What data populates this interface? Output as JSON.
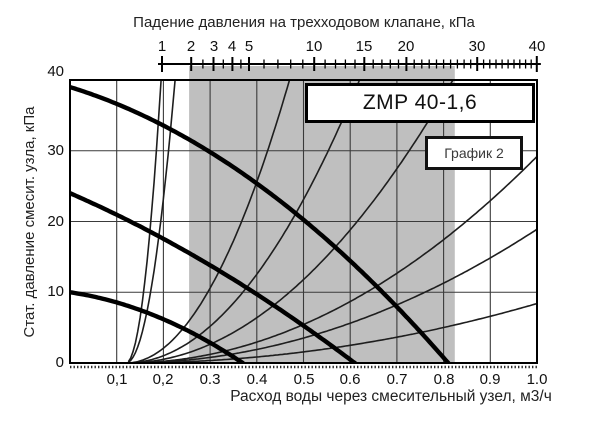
{
  "page": {
    "background": "#ffffff"
  },
  "chart_data": {
    "type": "line",
    "model_label": "ZMP 40-1,6",
    "caption_label": "График 2",
    "top_axis": {
      "label": "Падение давления на трехходовом клапане, кПа",
      "scale": "sqrt",
      "range": [
        1,
        40
      ],
      "major_ticks": [
        1,
        2,
        3,
        4,
        5,
        10,
        15,
        20,
        30,
        40
      ],
      "major_tick_labels": [
        "1",
        "2",
        "3",
        "4",
        "5",
        "10",
        "15",
        "20",
        "30",
        "40"
      ],
      "minor_ticks": [
        2.5,
        3.5,
        4.5,
        6,
        7,
        8,
        9,
        11,
        12,
        13,
        14,
        16,
        17,
        18,
        19,
        21,
        22,
        23,
        24,
        25,
        26,
        27,
        28,
        29,
        31,
        32,
        33,
        34,
        35,
        36,
        37,
        38,
        39
      ]
    },
    "bottom_axis": {
      "label": "Расход воды через смесительный узел, м3/ч",
      "range": [
        0,
        1.0
      ],
      "ticks": [
        0.1,
        0.2,
        0.3,
        0.4,
        0.5,
        0.6,
        0.7,
        0.8,
        0.9,
        1.0
      ],
      "tick_labels": [
        "0,1",
        "0,2",
        "0.3",
        "0.4",
        "0.5",
        "0.6",
        "0.7",
        "0.8",
        "0.9",
        "1.0"
      ],
      "gridlines": [
        0.1,
        0.2,
        0.3,
        0.4,
        0.5,
        0.6,
        0.7,
        0.8,
        0.9
      ]
    },
    "left_axis": {
      "label": "Стат. давление смесит. узла, кПа",
      "range": [
        0,
        40
      ],
      "ticks": [
        0,
        10,
        20,
        30,
        40
      ],
      "tick_labels": [
        "0",
        "10",
        "20",
        "30",
        "40"
      ],
      "gridlines": [
        10,
        20,
        30
      ]
    },
    "working_range_band": {
      "flow_from": 0.255,
      "flow_to": 0.824,
      "valve_dp_from_kpa": 2,
      "valve_dp_to_kpa": 27,
      "color": "#bfbfbf"
    },
    "pump_curves": [
      {
        "name": "pump-speed-high",
        "model": {
          "v0": 39,
          "s": 20.3,
          "c": 34.4
        },
        "x_end": 0.81,
        "points": [
          [
            0,
            39
          ],
          [
            0.3,
            29.8
          ],
          [
            0.5,
            20.3
          ],
          [
            0.7,
            7.9
          ],
          [
            0.81,
            0
          ]
        ]
      },
      {
        "name": "pump-speed-mid",
        "model": {
          "v0": 24,
          "s": 28.7,
          "c": 17.5
        },
        "x_end": 0.61,
        "points": [
          [
            0,
            24
          ],
          [
            0.2,
            17.6
          ],
          [
            0.4,
            9.7
          ],
          [
            0.61,
            0
          ]
        ]
      },
      {
        "name": "pump-speed-low",
        "model": {
          "v0": 10,
          "s": 9.7,
          "c": 46.9
        },
        "x_end": 0.37,
        "points": [
          [
            0,
            10
          ],
          [
            0.2,
            6.2
          ],
          [
            0.37,
            0
          ]
        ]
      }
    ],
    "valve_curves": {
      "model": "kpa = 40*((flow - 0.12)/w)^2",
      "x_offset": 0.12,
      "max_kpa": 40,
      "w_values": [
        0.075,
        0.105,
        0.35,
        0.5,
        0.7,
        1.03,
        1.28,
        1.92
      ]
    },
    "colors": {
      "band": "#bfbfbf",
      "curve": "#000000",
      "thin_curve": "#1e1e1e",
      "grid": "#3a3a3a",
      "axis": "#000000"
    }
  }
}
